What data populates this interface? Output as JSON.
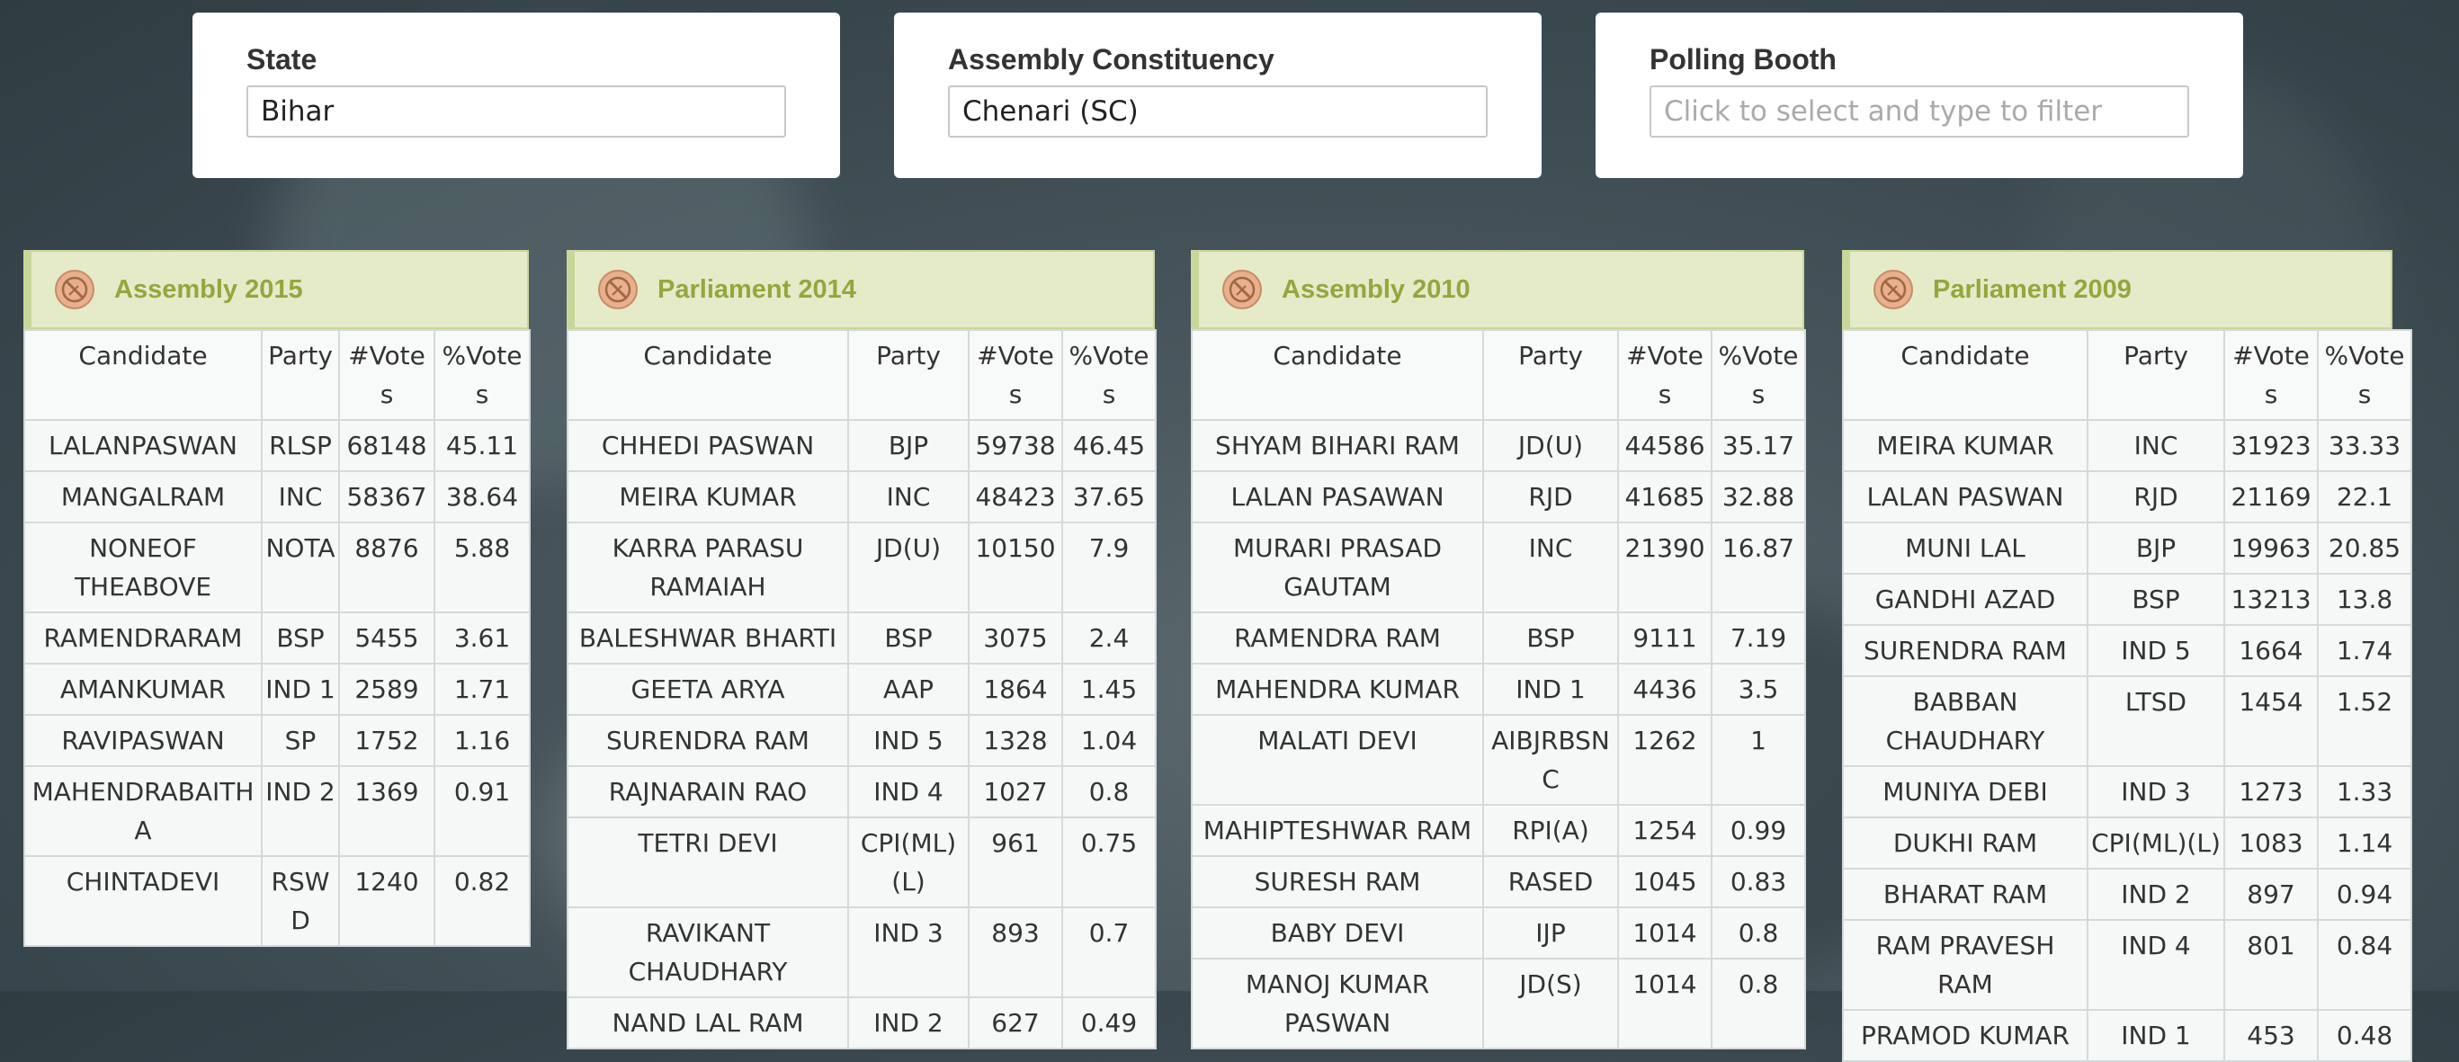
{
  "filters": {
    "state": {
      "label": "State",
      "value": "Bihar",
      "placeholder": ""
    },
    "constituency": {
      "label": "Assembly Constituency",
      "value": "Chenari (SC)",
      "placeholder": ""
    },
    "booth": {
      "label": "Polling Booth",
      "value": "",
      "placeholder": "Click to select and type to filter"
    }
  },
  "columns": [
    "Candidate",
    "Party",
    "#Votes",
    "%Votes"
  ],
  "panels": [
    {
      "title": "Assembly 2015",
      "rows": [
        [
          "LALANPASWAN",
          "RLSP",
          "68148",
          "45.11"
        ],
        [
          "MANGALRAM",
          "INC",
          "58367",
          "38.64"
        ],
        [
          "NONEOF THEABOVE",
          "NOTA",
          "8876",
          "5.88"
        ],
        [
          "RAMENDRARAM",
          "BSP",
          "5455",
          "3.61"
        ],
        [
          "AMANKUMAR",
          "IND 1",
          "2589",
          "1.71"
        ],
        [
          "RAVIPASWAN",
          "SP",
          "1752",
          "1.16"
        ],
        [
          "MAHENDRABAITHA",
          "IND 2",
          "1369",
          "0.91"
        ],
        [
          "CHINTADEVI",
          "RSWD",
          "1240",
          "0.82"
        ]
      ]
    },
    {
      "title": "Parliament 2014",
      "rows": [
        [
          "CHHEDI PASWAN",
          "BJP",
          "59738",
          "46.45"
        ],
        [
          "MEIRA KUMAR",
          "INC",
          "48423",
          "37.65"
        ],
        [
          "KARRA PARASU RAMAIAH",
          "JD(U)",
          "10150",
          "7.9"
        ],
        [
          "BALESHWAR BHARTI",
          "BSP",
          "3075",
          "2.4"
        ],
        [
          "GEETA ARYA",
          "AAP",
          "1864",
          "1.45"
        ],
        [
          "SURENDRA RAM",
          "IND 5",
          "1328",
          "1.04"
        ],
        [
          "RAJNARAIN RAO",
          "IND 4",
          "1027",
          "0.8"
        ],
        [
          "TETRI DEVI",
          "CPI(ML)(L)",
          "961",
          "0.75"
        ],
        [
          "RAVIKANT CHAUDHARY",
          "IND 3",
          "893",
          "0.7"
        ],
        [
          "NAND LAL RAM",
          "IND 2",
          "627",
          "0.49"
        ]
      ]
    },
    {
      "title": "Assembly 2010",
      "rows": [
        [
          "SHYAM BIHARI RAM",
          "JD(U)",
          "44586",
          "35.17"
        ],
        [
          "LALAN PASAWAN",
          "RJD",
          "41685",
          "32.88"
        ],
        [
          "MURARI PRASAD GAUTAM",
          "INC",
          "21390",
          "16.87"
        ],
        [
          "RAMENDRA RAM",
          "BSP",
          "9111",
          "7.19"
        ],
        [
          "MAHENDRA KUMAR",
          "IND 1",
          "4436",
          "3.5"
        ],
        [
          "MALATI DEVI",
          "AIBJRBSNC",
          "1262",
          "1"
        ],
        [
          "MAHIPTESHWAR RAM",
          "RPI(A)",
          "1254",
          "0.99"
        ],
        [
          "SURESH RAM",
          "RASED",
          "1045",
          "0.83"
        ],
        [
          "BABY DEVI",
          "IJP",
          "1014",
          "0.8"
        ],
        [
          "MANOJ KUMAR PASWAN",
          "JD(S)",
          "1014",
          "0.8"
        ]
      ]
    },
    {
      "title": "Parliament 2009",
      "rows": [
        [
          "MEIRA KUMAR",
          "INC",
          "31923",
          "33.33"
        ],
        [
          "LALAN PASWAN",
          "RJD",
          "21169",
          "22.1"
        ],
        [
          "MUNI LAL",
          "BJP",
          "19963",
          "20.85"
        ],
        [
          "GANDHI AZAD",
          "BSP",
          "13213",
          "13.8"
        ],
        [
          "SURENDRA RAM",
          "IND 5",
          "1664",
          "1.74"
        ],
        [
          "BABBAN CHAUDHARY",
          "LTSD",
          "1454",
          "1.52"
        ],
        [
          "MUNIYA DEBI",
          "IND 3",
          "1273",
          "1.33"
        ],
        [
          "DUKHI RAM",
          "CPI(ML)(L)",
          "1083",
          "1.14"
        ],
        [
          "BHARAT RAM",
          "IND 2",
          "897",
          "0.94"
        ],
        [
          "RAM PRAVESH RAM",
          "IND 4",
          "801",
          "0.84"
        ],
        [
          "PRAMOD KUMAR",
          "IND 1",
          "453",
          "0.48"
        ]
      ]
    }
  ],
  "colors": {
    "panel_header_bg": "#e5ebc9",
    "panel_title": "#93a73e",
    "icon_fill": "#e7b08f"
  },
  "icons": {
    "panel": "no-vote-icon"
  }
}
